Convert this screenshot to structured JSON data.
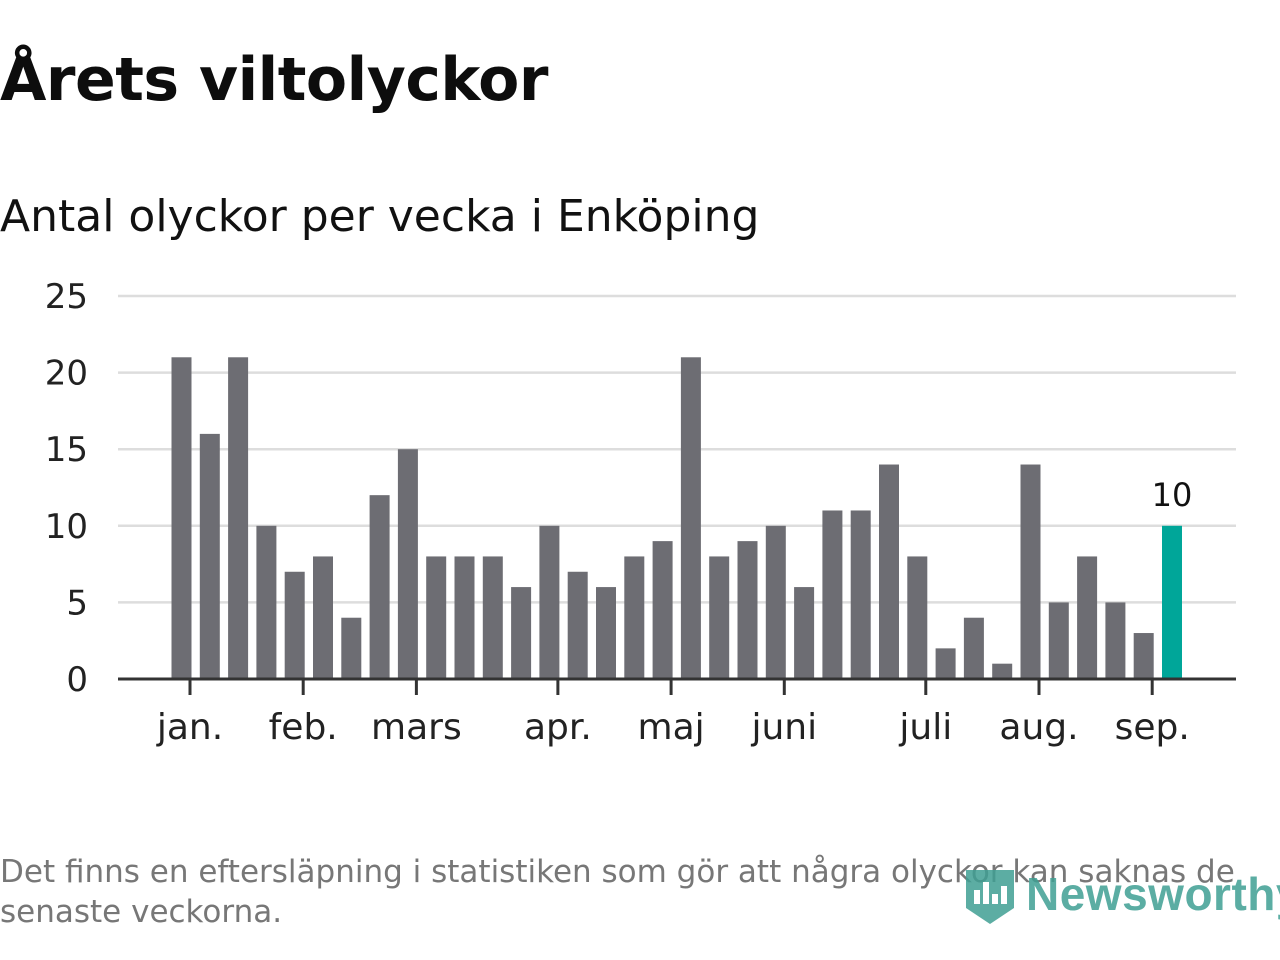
{
  "header": {
    "title": "Årets viltolyckor",
    "subtitle": "Antal olyckor per vecka i Enköping"
  },
  "chart_data": {
    "type": "bar",
    "title": "Årets viltolyckor",
    "subtitle": "Antal olyckor per vecka i Enköping",
    "xlabel": "",
    "ylabel": "",
    "ylim": [
      0,
      25
    ],
    "yticks": [
      0,
      5,
      10,
      15,
      20,
      25
    ],
    "grid": true,
    "values": [
      21,
      16,
      21,
      10,
      7,
      8,
      4,
      12,
      15,
      8,
      8,
      8,
      6,
      10,
      7,
      6,
      8,
      9,
      21,
      8,
      9,
      10,
      6,
      11,
      11,
      14,
      8,
      2,
      4,
      1,
      14,
      5,
      8,
      5,
      3,
      10
    ],
    "month_ticks": [
      {
        "label": "jan.",
        "index": 0.3
      },
      {
        "label": "feb.",
        "index": 4.3
      },
      {
        "label": "mars",
        "index": 8.3
      },
      {
        "label": "apr.",
        "index": 13.3
      },
      {
        "label": "maj",
        "index": 17.3
      },
      {
        "label": "juni",
        "index": 21.3
      },
      {
        "label": "juli",
        "index": 26.3
      },
      {
        "label": "aug.",
        "index": 30.3
      },
      {
        "label": "sep.",
        "index": 34.3
      }
    ],
    "highlight": {
      "index": 35,
      "label": "10",
      "color": "#00a699"
    },
    "bar_color": "#6d6d73",
    "grid_color": "#dddddd",
    "axis_color": "#333333"
  },
  "footer": {
    "note": "Det finns en eftersläpning i statistiken som gör att några olyckor kan saknas de senaste veckorna.",
    "brand": "Newsworthy",
    "brand_color": "#3f9f93"
  }
}
